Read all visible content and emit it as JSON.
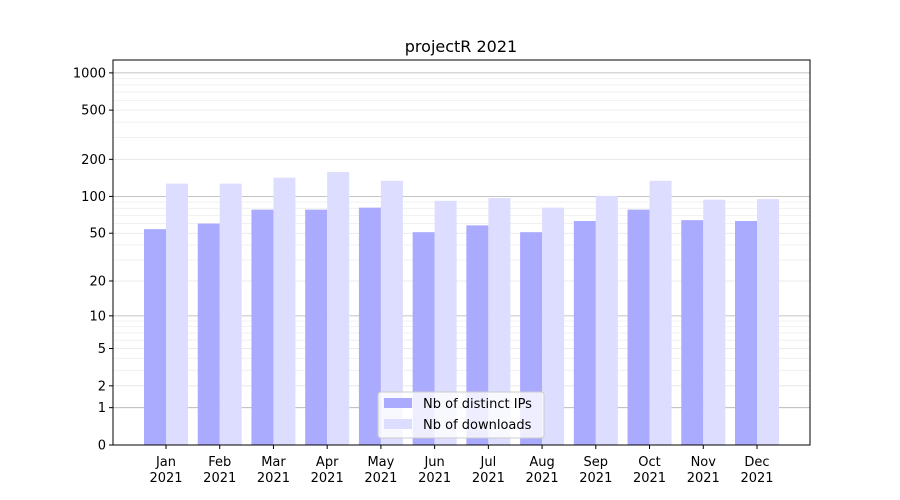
{
  "chart_data": {
    "type": "bar",
    "title": "projectR 2021",
    "xlabel": "",
    "ylabel": "",
    "yscale": "log10(1+y)",
    "ylim": [
      0,
      1270
    ],
    "yticks": [
      0,
      1,
      2,
      5,
      10,
      20,
      50,
      100,
      200,
      500,
      1000
    ],
    "ytick_labels": [
      "0",
      "1",
      "2",
      "5",
      "10",
      "20",
      "50",
      "100",
      "200",
      "500",
      "1000"
    ],
    "categories": [
      "Jan",
      "Feb",
      "Mar",
      "Apr",
      "May",
      "Jun",
      "Jul",
      "Aug",
      "Sep",
      "Oct",
      "Nov",
      "Dec"
    ],
    "category_year": "2021",
    "series": [
      {
        "name": "Nb of distinct IPs",
        "color": "#aaaaff",
        "values": [
          54,
          60,
          78,
          78,
          81,
          51,
          58,
          51,
          63,
          78,
          64,
          63
        ]
      },
      {
        "name": "Nb of downloads",
        "color": "#ddddff",
        "values": [
          127,
          127,
          142,
          158,
          134,
          92,
          97,
          81,
          101,
          134,
          94,
          95
        ]
      }
    ],
    "legend": "bottom-center",
    "grid": true
  }
}
